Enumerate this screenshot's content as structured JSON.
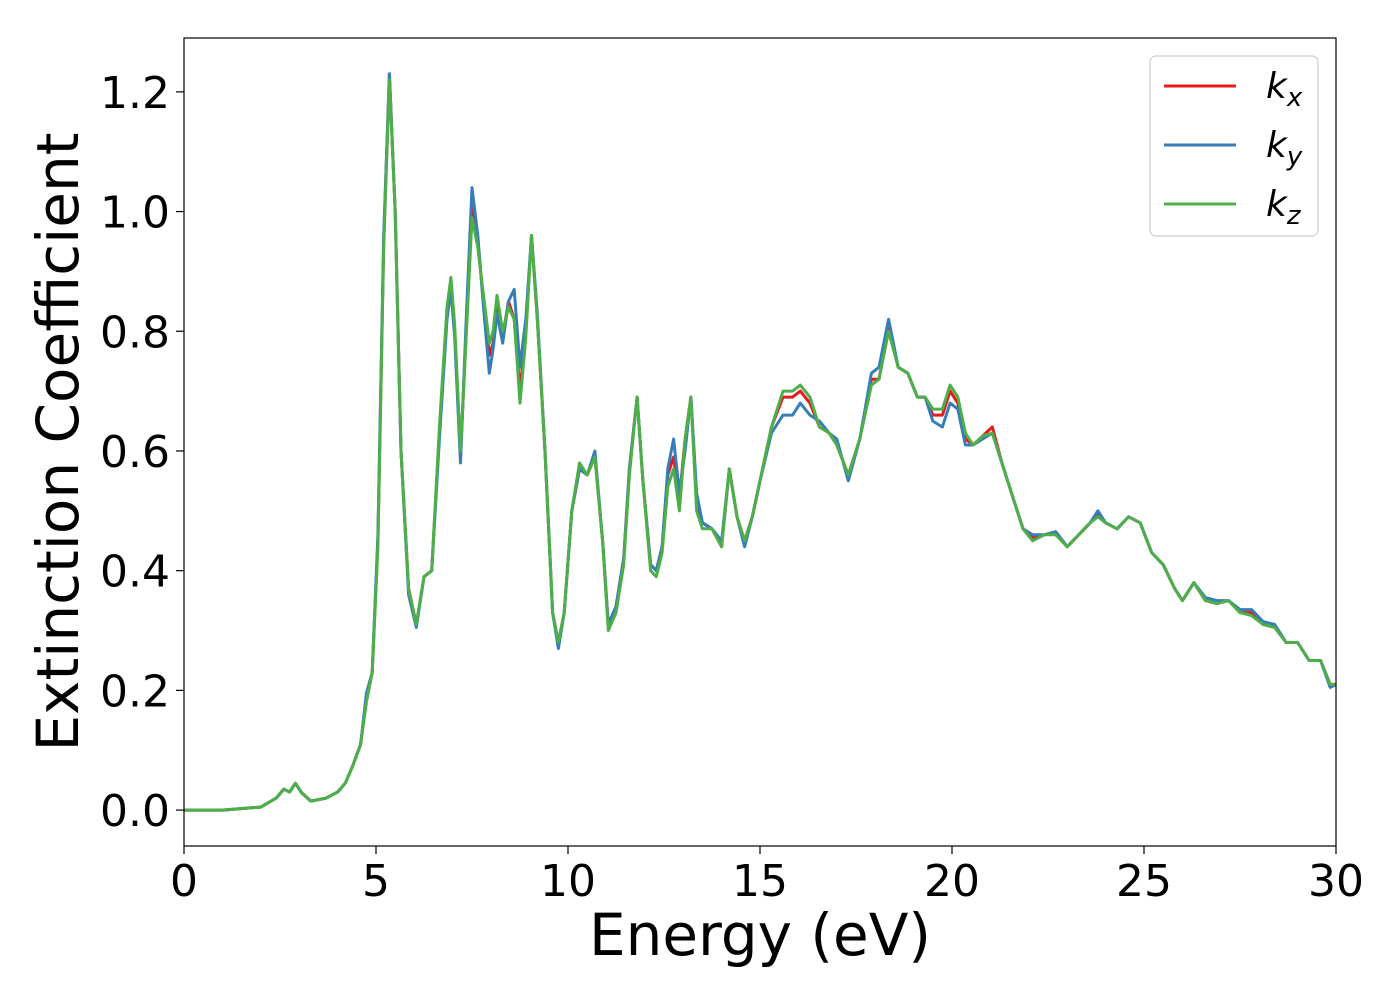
{
  "chart_data": {
    "type": "line",
    "title": "",
    "xlabel": "Energy (eV)",
    "ylabel": "Extinction Coefficient",
    "xlim": [
      0,
      30
    ],
    "ylim": [
      -0.06,
      1.29
    ],
    "xticks": [
      "0",
      "5",
      "10",
      "15",
      "20",
      "25",
      "30"
    ],
    "yticks": [
      "0.0",
      "0.2",
      "0.4",
      "0.6",
      "0.8",
      "1.0",
      "1.2"
    ],
    "grid": false,
    "legend_position": "top-right",
    "x": [
      0.0,
      1.0,
      2.0,
      2.4,
      2.6,
      2.75,
      2.9,
      3.05,
      3.3,
      3.7,
      4.0,
      4.2,
      4.4,
      4.6,
      4.75,
      4.9,
      5.05,
      5.2,
      5.35,
      5.5,
      5.65,
      5.85,
      6.05,
      6.25,
      6.45,
      6.65,
      6.85,
      6.95,
      7.05,
      7.2,
      7.35,
      7.5,
      7.65,
      7.8,
      7.95,
      8.05,
      8.15,
      8.3,
      8.45,
      8.6,
      8.75,
      8.9,
      9.05,
      9.2,
      9.4,
      9.6,
      9.75,
      9.9,
      10.1,
      10.3,
      10.5,
      10.7,
      10.9,
      11.05,
      11.25,
      11.45,
      11.6,
      11.8,
      11.95,
      12.15,
      12.3,
      12.45,
      12.6,
      12.75,
      12.9,
      13.05,
      13.2,
      13.35,
      13.5,
      13.75,
      14.0,
      14.2,
      14.4,
      14.6,
      14.8,
      15.0,
      15.3,
      15.6,
      15.85,
      16.05,
      16.3,
      16.55,
      16.8,
      17.0,
      17.3,
      17.6,
      17.9,
      18.1,
      18.35,
      18.6,
      18.85,
      19.1,
      19.3,
      19.5,
      19.75,
      19.95,
      20.15,
      20.35,
      20.55,
      20.8,
      21.05,
      21.3,
      21.6,
      21.85,
      22.1,
      22.4,
      22.7,
      23.0,
      23.3,
      23.6,
      23.8,
      24.0,
      24.3,
      24.6,
      24.9,
      25.2,
      25.5,
      25.8,
      26.0,
      26.3,
      26.6,
      26.9,
      27.2,
      27.5,
      27.8,
      28.1,
      28.4,
      28.7,
      29.0,
      29.3,
      29.6,
      29.85,
      30.0
    ],
    "series": [
      {
        "name": "k",
        "subscript": "x",
        "color": "#e41a1c",
        "values": [
          0.0,
          0.0,
          0.005,
          0.02,
          0.035,
          0.03,
          0.045,
          0.03,
          0.015,
          0.02,
          0.03,
          0.045,
          0.075,
          0.11,
          0.185,
          0.23,
          0.45,
          0.95,
          1.23,
          1.0,
          0.6,
          0.37,
          0.31,
          0.39,
          0.4,
          0.63,
          0.83,
          0.88,
          0.8,
          0.59,
          0.8,
          1.01,
          0.95,
          0.85,
          0.76,
          0.78,
          0.84,
          0.79,
          0.85,
          0.82,
          0.7,
          0.8,
          0.96,
          0.82,
          0.6,
          0.33,
          0.28,
          0.33,
          0.5,
          0.57,
          0.56,
          0.59,
          0.45,
          0.31,
          0.34,
          0.42,
          0.57,
          0.69,
          0.55,
          0.41,
          0.4,
          0.44,
          0.56,
          0.59,
          0.52,
          0.62,
          0.69,
          0.52,
          0.48,
          0.47,
          0.44,
          0.57,
          0.49,
          0.45,
          0.49,
          0.55,
          0.64,
          0.69,
          0.69,
          0.7,
          0.68,
          0.64,
          0.63,
          0.61,
          0.56,
          0.62,
          0.72,
          0.72,
          0.81,
          0.74,
          0.73,
          0.69,
          0.69,
          0.66,
          0.66,
          0.7,
          0.68,
          0.62,
          0.61,
          0.625,
          0.64,
          0.58,
          0.52,
          0.47,
          0.455,
          0.46,
          0.465,
          0.44,
          0.46,
          0.48,
          0.495,
          0.48,
          0.47,
          0.49,
          0.48,
          0.43,
          0.41,
          0.37,
          0.35,
          0.38,
          0.35,
          0.345,
          0.35,
          0.33,
          0.33,
          0.31,
          0.31,
          0.28,
          0.28,
          0.25,
          0.25,
          0.21,
          0.21
        ]
      },
      {
        "name": "k",
        "subscript": "y",
        "color": "#377eb8",
        "values": [
          0.0,
          0.0,
          0.005,
          0.02,
          0.035,
          0.03,
          0.045,
          0.03,
          0.015,
          0.02,
          0.03,
          0.045,
          0.075,
          0.11,
          0.195,
          0.23,
          0.46,
          0.96,
          1.23,
          1.0,
          0.6,
          0.36,
          0.305,
          0.39,
          0.4,
          0.62,
          0.82,
          0.87,
          0.79,
          0.58,
          0.82,
          1.04,
          0.96,
          0.84,
          0.73,
          0.77,
          0.83,
          0.78,
          0.85,
          0.87,
          0.74,
          0.82,
          0.96,
          0.83,
          0.6,
          0.33,
          0.27,
          0.33,
          0.5,
          0.57,
          0.56,
          0.6,
          0.45,
          0.31,
          0.34,
          0.42,
          0.57,
          0.69,
          0.55,
          0.41,
          0.4,
          0.44,
          0.57,
          0.62,
          0.53,
          0.6,
          0.69,
          0.53,
          0.48,
          0.47,
          0.45,
          0.57,
          0.49,
          0.44,
          0.49,
          0.55,
          0.63,
          0.66,
          0.66,
          0.68,
          0.66,
          0.65,
          0.63,
          0.62,
          0.55,
          0.62,
          0.73,
          0.74,
          0.82,
          0.74,
          0.73,
          0.69,
          0.69,
          0.65,
          0.64,
          0.68,
          0.67,
          0.61,
          0.61,
          0.62,
          0.63,
          0.58,
          0.52,
          0.47,
          0.46,
          0.46,
          0.465,
          0.44,
          0.46,
          0.48,
          0.5,
          0.48,
          0.47,
          0.49,
          0.48,
          0.43,
          0.41,
          0.37,
          0.35,
          0.38,
          0.355,
          0.35,
          0.35,
          0.335,
          0.335,
          0.315,
          0.31,
          0.28,
          0.28,
          0.25,
          0.25,
          0.205,
          0.21
        ]
      },
      {
        "name": "k",
        "subscript": "z",
        "color": "#4daf4a",
        "values": [
          0.0,
          0.0,
          0.005,
          0.02,
          0.035,
          0.03,
          0.045,
          0.03,
          0.015,
          0.02,
          0.03,
          0.045,
          0.075,
          0.11,
          0.18,
          0.23,
          0.44,
          0.94,
          1.22,
          1.0,
          0.6,
          0.37,
          0.31,
          0.39,
          0.4,
          0.64,
          0.84,
          0.89,
          0.81,
          0.6,
          0.79,
          0.99,
          0.94,
          0.86,
          0.78,
          0.8,
          0.86,
          0.8,
          0.84,
          0.82,
          0.68,
          0.79,
          0.96,
          0.82,
          0.6,
          0.33,
          0.28,
          0.33,
          0.5,
          0.58,
          0.56,
          0.59,
          0.45,
          0.3,
          0.33,
          0.41,
          0.56,
          0.69,
          0.55,
          0.4,
          0.39,
          0.43,
          0.54,
          0.57,
          0.5,
          0.62,
          0.69,
          0.5,
          0.47,
          0.47,
          0.44,
          0.57,
          0.49,
          0.45,
          0.49,
          0.55,
          0.64,
          0.7,
          0.7,
          0.71,
          0.69,
          0.64,
          0.63,
          0.61,
          0.56,
          0.62,
          0.71,
          0.72,
          0.8,
          0.74,
          0.73,
          0.69,
          0.69,
          0.67,
          0.67,
          0.71,
          0.69,
          0.63,
          0.61,
          0.625,
          0.63,
          0.58,
          0.52,
          0.47,
          0.45,
          0.46,
          0.46,
          0.44,
          0.46,
          0.48,
          0.49,
          0.48,
          0.47,
          0.49,
          0.48,
          0.43,
          0.41,
          0.37,
          0.35,
          0.38,
          0.35,
          0.345,
          0.35,
          0.33,
          0.325,
          0.31,
          0.305,
          0.28,
          0.28,
          0.25,
          0.25,
          0.21,
          0.21
        ]
      }
    ]
  }
}
